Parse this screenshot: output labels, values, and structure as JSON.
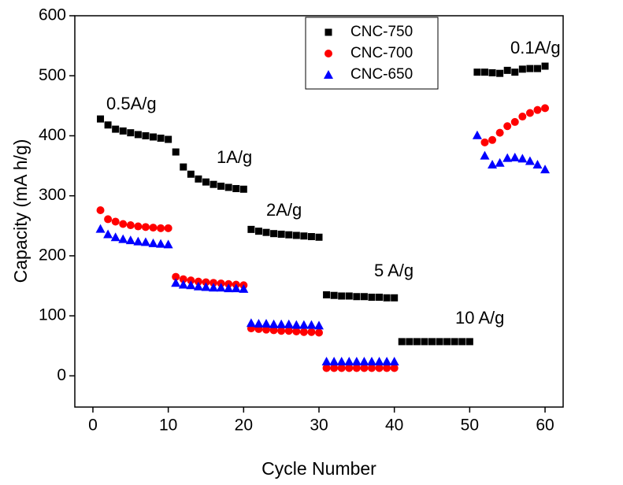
{
  "chart_data": {
    "type": "scatter",
    "xlabel": "Cycle Number",
    "ylabel": "Capacity (mA h/g)",
    "xlim": [
      -2.4,
      62.4
    ],
    "ylim": [
      -52,
      600
    ],
    "xticks": [
      0,
      10,
      20,
      30,
      40,
      50,
      60
    ],
    "yticks": [
      0,
      100,
      200,
      300,
      400,
      500,
      600
    ],
    "annotations": [
      "0.5A/g",
      "1A/g",
      "2A/g",
      "5 A/g",
      "10 A/g",
      "0.1A/g"
    ],
    "x": [
      1,
      2,
      3,
      4,
      5,
      6,
      7,
      8,
      9,
      10,
      11,
      12,
      13,
      14,
      15,
      16,
      17,
      18,
      19,
      20,
      21,
      22,
      23,
      24,
      25,
      26,
      27,
      28,
      29,
      30,
      31,
      32,
      33,
      34,
      35,
      36,
      37,
      38,
      39,
      40,
      41,
      42,
      43,
      44,
      45,
      46,
      47,
      48,
      49,
      50,
      51,
      52,
      53,
      54,
      55,
      56,
      57,
      58,
      59,
      60
    ],
    "series": [
      {
        "name": "CNC-750",
        "color": "#000000",
        "marker": "square",
        "values": [
          428,
          418,
          411,
          408,
          405,
          402,
          400,
          398,
          396,
          394,
          373,
          348,
          336,
          328,
          323,
          319,
          316,
          314,
          312,
          311,
          244,
          241,
          239,
          237,
          236,
          235,
          234,
          233,
          232,
          231,
          135,
          134,
          133,
          133,
          132,
          132,
          131,
          131,
          130,
          130,
          57,
          57,
          57,
          57,
          57,
          57,
          57,
          57,
          57,
          57,
          506,
          506,
          505,
          504,
          509,
          506,
          511,
          512,
          512,
          516
        ]
      },
      {
        "name": "CNC-700",
        "color": "#ff0000",
        "marker": "circle",
        "values": [
          276,
          261,
          257,
          253,
          251,
          249,
          248,
          247,
          246,
          246,
          165,
          161,
          159,
          157,
          156,
          155,
          154,
          153,
          152,
          151,
          79,
          78,
          77,
          76,
          75,
          75,
          74,
          73,
          73,
          72,
          13,
          13,
          13,
          13,
          13,
          13,
          13,
          13,
          13,
          13,
          null,
          null,
          null,
          null,
          null,
          null,
          null,
          null,
          null,
          null,
          null,
          389,
          393,
          405,
          416,
          423,
          432,
          438,
          443,
          446
        ]
      },
      {
        "name": "CNC-650",
        "color": "#0000ff",
        "marker": "triangle",
        "values": [
          245,
          236,
          231,
          228,
          226,
          224,
          223,
          221,
          220,
          219,
          155,
          152,
          151,
          149,
          148,
          147,
          147,
          146,
          146,
          145,
          88,
          87,
          87,
          86,
          86,
          86,
          85,
          85,
          85,
          84,
          24,
          24,
          24,
          24,
          24,
          24,
          24,
          24,
          24,
          24,
          null,
          null,
          null,
          null,
          null,
          null,
          null,
          null,
          null,
          null,
          401,
          367,
          352,
          355,
          363,
          364,
          362,
          358,
          352,
          344
        ]
      }
    ]
  }
}
